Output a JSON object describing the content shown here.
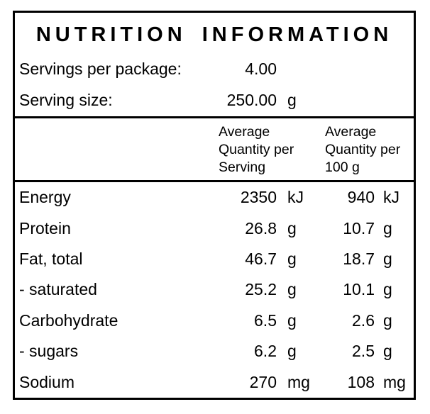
{
  "label": {
    "title": "NUTRITION INFORMATION",
    "servings_per_package": {
      "label": "Servings per package:",
      "value": "4.00"
    },
    "serving_size": {
      "label": "Serving size:",
      "value": "250.00",
      "unit": "g"
    },
    "columns": {
      "per_serving": [
        "Average",
        "Quantity per",
        "Serving"
      ],
      "per_100g": [
        "Average",
        "Quantity per",
        "100 g"
      ]
    },
    "rows": [
      {
        "name": "Energy",
        "serving_value": "2350",
        "serving_unit": "kJ",
        "per100_value": "940",
        "per100_unit": "kJ"
      },
      {
        "name": "Protein",
        "serving_value": "26.8",
        "serving_unit": "g",
        "per100_value": "10.7",
        "per100_unit": "g"
      },
      {
        "name": "Fat, total",
        "serving_value": "46.7",
        "serving_unit": "g",
        "per100_value": "18.7",
        "per100_unit": "g"
      },
      {
        "name": "- saturated",
        "serving_value": "25.2",
        "serving_unit": "g",
        "per100_value": "10.1",
        "per100_unit": "g"
      },
      {
        "name": "Carbohydrate",
        "serving_value": "6.5",
        "serving_unit": "g",
        "per100_value": "2.6",
        "per100_unit": "g"
      },
      {
        "name": "- sugars",
        "serving_value": "6.2",
        "serving_unit": "g",
        "per100_value": "2.5",
        "per100_unit": "g"
      },
      {
        "name": "Sodium",
        "serving_value": "270",
        "serving_unit": "mg",
        "per100_value": "108",
        "per100_unit": "mg"
      }
    ],
    "colors": {
      "border": "#000000",
      "text": "#000000",
      "background": "#ffffff"
    }
  }
}
